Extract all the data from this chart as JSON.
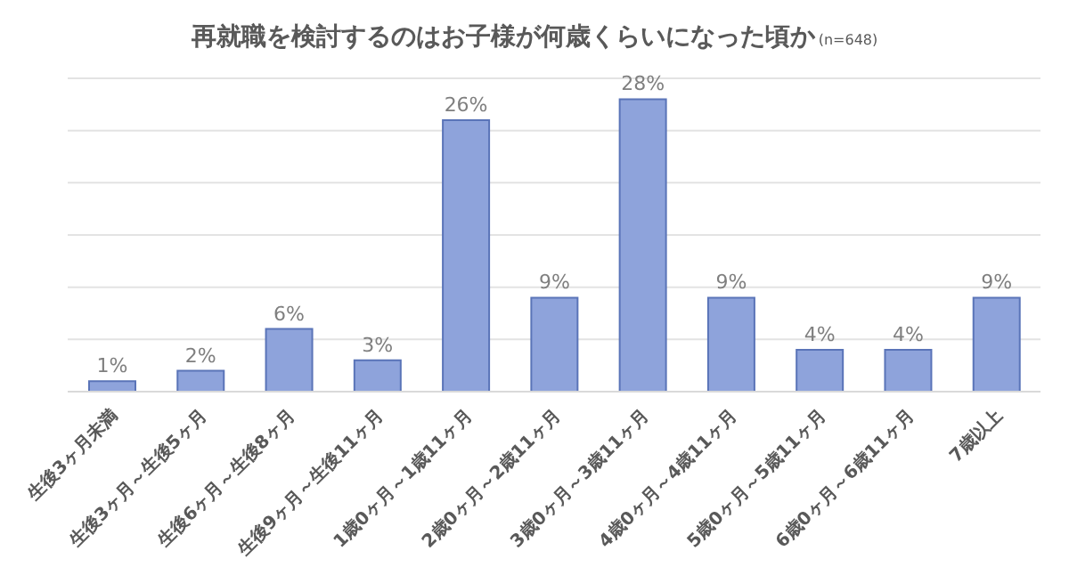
{
  "chart_data": {
    "type": "bar",
    "title": "再就職を検討するのはお子様が何歳くらいになった頃か",
    "subtitle": "(n=648)",
    "categories": [
      "生後3ヶ月未満",
      "生後3ヶ月～生後5ヶ月",
      "生後6ヶ月～生後8ヶ月",
      "生後9ヶ月～生後11ヶ月",
      "1歳0ヶ月～1歳11ヶ月",
      "2歳0ヶ月～2歳11ヶ月",
      "3歳0ヶ月～3歳11ヶ月",
      "4歳0ヶ月～4歳11ヶ月",
      "5歳0ヶ月～5歳11ヶ月",
      "6歳0ヶ月～6歳11ヶ月",
      "7歳以上"
    ],
    "values": [
      1,
      2,
      6,
      3,
      26,
      9,
      28,
      9,
      4,
      4,
      9
    ],
    "value_labels": [
      "1%",
      "2%",
      "6%",
      "3%",
      "26%",
      "9%",
      "28%",
      "9%",
      "4%",
      "4%",
      "9%"
    ],
    "color": "#8ea3db",
    "grid": "y",
    "tick_labels": "x",
    "legend": false
  }
}
